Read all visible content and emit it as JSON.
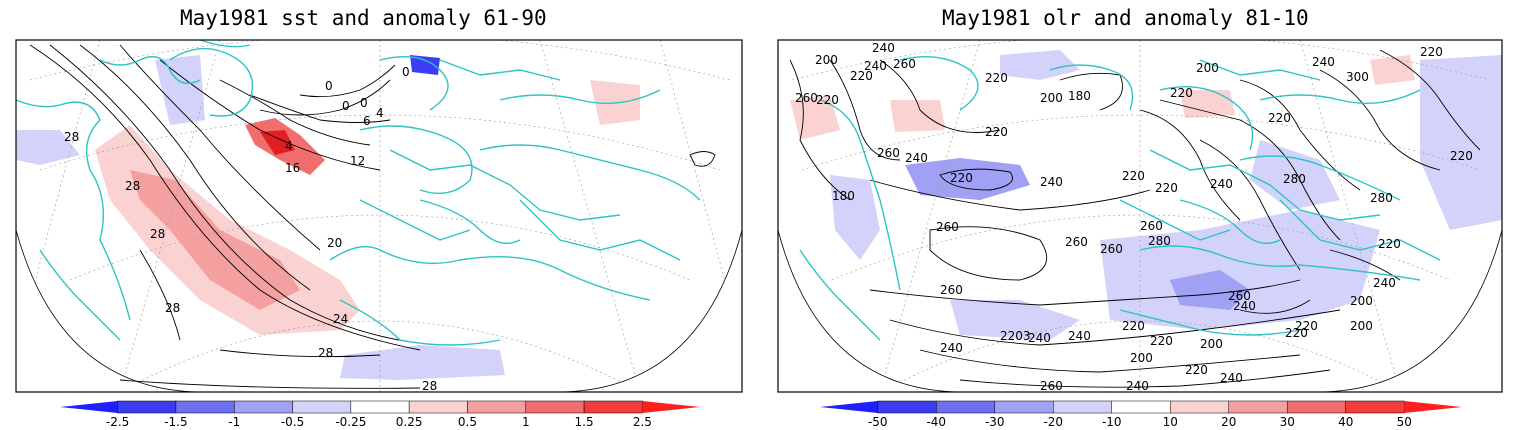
{
  "panels": [
    {
      "title": "May1981 sst and anomaly 61-90",
      "contour_labels": [
        "0",
        "0",
        "0",
        "0",
        "4",
        "6",
        "4",
        "12",
        "16",
        "20",
        "28",
        "28",
        "28",
        "28",
        "24",
        "28",
        "28"
      ],
      "colorbar": {
        "ticks": [
          "-2.5",
          "-1.5",
          "-1",
          "-0.5",
          "-0.25",
          "0.25",
          "0.5",
          "1",
          "1.5",
          "2.5"
        ],
        "colors": [
          "#1f1fff",
          "#3c3cf5",
          "#6e6ef0",
          "#a0a0f5",
          "#d2d2fa",
          "#ffffff",
          "#fad2d2",
          "#f5a0a0",
          "#f06e6e",
          "#f53c3c",
          "#ff1f1f"
        ]
      }
    },
    {
      "title": "May1981 olr and anomaly 81-10",
      "contour_labels": [
        "240",
        "260",
        "200",
        "220",
        "240",
        "220",
        "260",
        "220",
        "180",
        "200",
        "220",
        "200",
        "220",
        "220",
        "240",
        "300",
        "220",
        "260",
        "240",
        "180",
        "220",
        "240",
        "220",
        "260",
        "260",
        "260",
        "220",
        "240",
        "280",
        "280",
        "220",
        "220",
        "260",
        "240",
        "200",
        "240",
        "260",
        "260",
        "280",
        "220",
        "240",
        "2203",
        "240",
        "200",
        "220",
        "200",
        "220",
        "240",
        "220",
        "240",
        "260",
        "240",
        "200",
        "220"
      ],
      "colorbar": {
        "ticks": [
          "-50",
          "-40",
          "-30",
          "-20",
          "-10",
          "10",
          "20",
          "30",
          "40",
          "50"
        ],
        "colors": [
          "#1f1fff",
          "#3c3cf5",
          "#6e6ef0",
          "#a0a0f5",
          "#d2d2fa",
          "#ffffff",
          "#fad2d2",
          "#f5a0a0",
          "#f06e6e",
          "#f53c3c",
          "#ff1f1f"
        ]
      }
    }
  ],
  "colors": {
    "coast": "#2ec4c4",
    "contour": "#000000",
    "grid": "#888888"
  }
}
